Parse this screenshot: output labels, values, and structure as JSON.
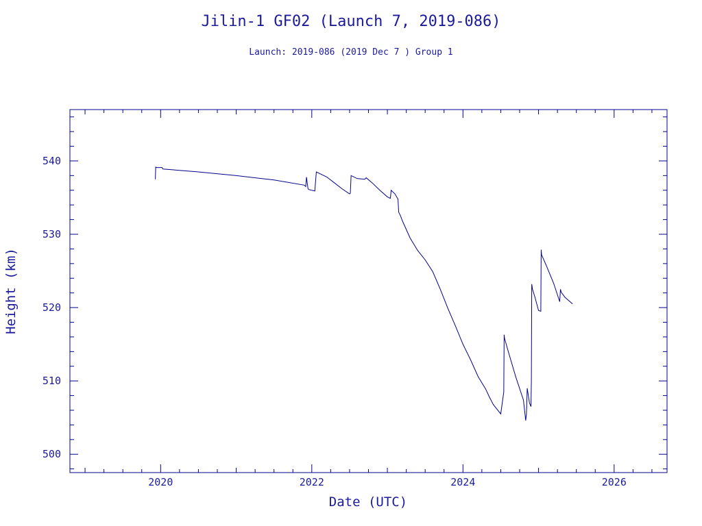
{
  "chart_data": {
    "type": "line",
    "title": "Jilin-1 GF02 (Launch 7, 2019-086)",
    "subtitle": "Launch: 2019-086  (2019 Dec  7 )  Group 1",
    "xlabel": "Date (UTC)",
    "ylabel": "Height (km)",
    "xlim": [
      2018.8,
      2026.7
    ],
    "ylim": [
      497.5,
      547
    ],
    "x_ticks": [
      2020,
      2022,
      2024,
      2026
    ],
    "y_ticks": [
      500,
      510,
      520,
      530,
      540
    ],
    "grid": false,
    "color": "#00008b",
    "series": [
      {
        "x": [
          2019.93,
          2019.935,
          2019.94,
          2020.02,
          2020.03,
          2020.5,
          2021.0,
          2021.5,
          2021.9,
          2021.92,
          2021.93,
          2021.95,
          2021.96,
          2022.04,
          2022.06,
          2022.2,
          2022.3,
          2022.4,
          2022.5,
          2022.51,
          2022.52,
          2022.6,
          2022.7,
          2022.72,
          2022.8,
          2022.9,
          2023.0,
          2023.04,
          2023.05,
          2023.1,
          2023.14,
          2023.15,
          2023.17,
          2023.2,
          2023.3,
          2023.4,
          2023.5,
          2023.6,
          2023.7,
          2023.8,
          2023.9,
          2024.0,
          2024.1,
          2024.2,
          2024.3,
          2024.35,
          2024.4,
          2024.5,
          2024.54,
          2024.545,
          2024.55,
          2024.6,
          2024.7,
          2024.8,
          2024.83,
          2024.84,
          2024.85,
          2024.88,
          2024.9,
          2024.905,
          2024.91,
          2024.92,
          2024.95,
          2025.0,
          2025.03,
          2025.035,
          2025.04,
          2025.1,
          2025.2,
          2025.28,
          2025.29,
          2025.3,
          2025.35,
          2025.45
        ],
        "y": [
          537.5,
          539.2,
          539.1,
          539.1,
          538.9,
          538.5,
          538.0,
          537.4,
          536.7,
          536.5,
          537.8,
          536.2,
          536.1,
          535.9,
          538.5,
          537.8,
          537.0,
          536.2,
          535.5,
          535.6,
          538.0,
          537.6,
          537.5,
          537.7,
          537.0,
          536.0,
          535.1,
          534.9,
          536.0,
          535.5,
          534.8,
          533.0,
          532.6,
          531.8,
          529.5,
          527.8,
          526.5,
          524.9,
          522.5,
          519.9,
          517.5,
          515.0,
          512.9,
          510.6,
          508.9,
          507.8,
          506.8,
          505.5,
          508.5,
          516.3,
          515.8,
          514.0,
          510.5,
          507.4,
          504.6,
          505.5,
          509.0,
          507.0,
          506.5,
          510.0,
          523.2,
          522.5,
          521.5,
          519.6,
          519.5,
          527.9,
          527.2,
          525.8,
          523.3,
          520.8,
          522.5,
          522.1,
          521.4,
          520.5
        ]
      }
    ]
  }
}
